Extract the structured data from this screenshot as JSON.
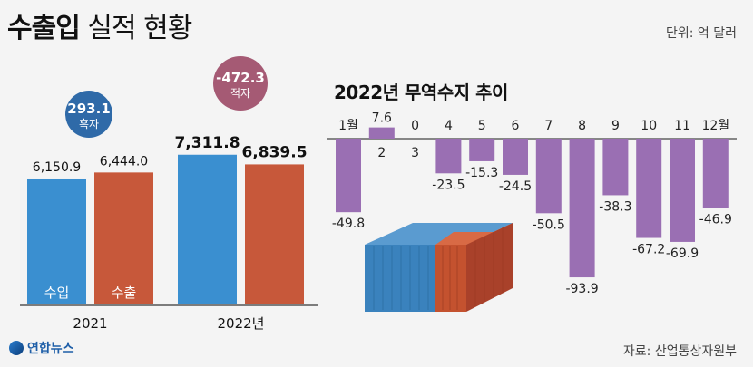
{
  "header": {
    "title_strong": "수출입",
    "title_light": "실적 현황",
    "unit": "단위: 억 달러"
  },
  "footer": {
    "source": "자료: 산업통상자원부",
    "logo": "연합뉴스"
  },
  "colors": {
    "import": "#3a8fd0",
    "export": "#c7583a",
    "surplus_bubble": "#2f6aa8",
    "deficit_bubble": "#a55a74",
    "trade_balance_bar": "#9a6fb3"
  },
  "chart_data": [
    {
      "type": "bar",
      "categories": [
        "2021",
        "2022년"
      ],
      "series": [
        {
          "name": "수입",
          "values": [
            6150.9,
            7311.8
          ],
          "labels": [
            "6,150.9",
            "7,311.8"
          ]
        },
        {
          "name": "수출",
          "values": [
            6444.0,
            6839.5
          ],
          "labels": [
            "6,444.0",
            "6,839.5"
          ]
        }
      ],
      "balance": [
        {
          "value": "293.1",
          "label": "흑자"
        },
        {
          "value": "-472.3",
          "label": "적자"
        }
      ],
      "ylim": [
        0,
        8000
      ]
    },
    {
      "type": "bar",
      "title": "2022년 무역수지 추이",
      "categories": [
        "1월",
        "2",
        "3",
        "4",
        "5",
        "6",
        "7",
        "8",
        "9",
        "10",
        "11",
        "12월"
      ],
      "values": [
        -49.8,
        7.6,
        0,
        -23.5,
        -15.3,
        -24.5,
        -50.5,
        -93.9,
        -38.3,
        -67.2,
        -69.9,
        -46.9
      ],
      "labels": [
        "-49.8",
        "7.6",
        "0",
        "-23.5",
        "-15.3",
        "-24.5",
        "-50.5",
        "-93.9",
        "-38.3",
        "-67.2",
        "-69.9",
        "-46.9"
      ],
      "ylim": [
        -100,
        10
      ]
    }
  ]
}
